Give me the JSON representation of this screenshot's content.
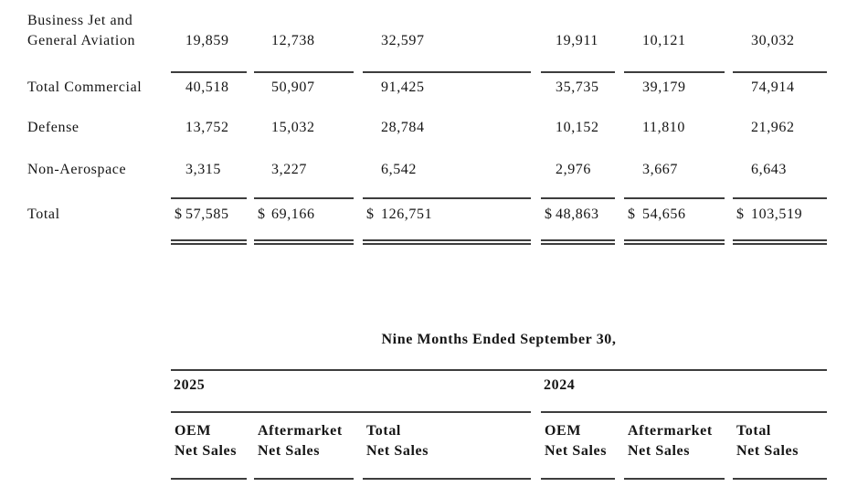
{
  "page": {
    "background_color": "#ffffff",
    "text_color": "#151515",
    "rule_color": "#3d3d3d"
  },
  "sales_table": {
    "currency_symbol": "$",
    "rows": [
      {
        "label": "Business Jet and General Aviation",
        "values": [
          "19,859",
          "12,738",
          "32,597",
          "19,911",
          "10,121",
          "30,032"
        ]
      },
      {
        "label": "Total Commercial",
        "values": [
          "40,518",
          "50,907",
          "91,425",
          "35,735",
          "39,179",
          "74,914"
        ]
      },
      {
        "label": "Defense",
        "values": [
          "13,752",
          "15,032",
          "28,784",
          "10,152",
          "11,810",
          "21,962"
        ]
      },
      {
        "label": "Non-Aerospace",
        "values": [
          "3,315",
          "3,227",
          "6,542",
          "2,976",
          "3,667",
          "6,643"
        ]
      },
      {
        "label": "Total",
        "values": [
          "57,585",
          "69,166",
          "126,751",
          "48,863",
          "54,656",
          "103,519"
        ]
      }
    ]
  },
  "nine_months_table": {
    "title": "Nine Months Ended September 30,",
    "year_groups": [
      {
        "year": "2025"
      },
      {
        "year": "2024"
      }
    ],
    "column_headers": [
      {
        "top": "OEM",
        "bottom": "Net Sales"
      },
      {
        "top": "Aftermarket",
        "bottom": "Net Sales"
      },
      {
        "top": "Total",
        "bottom": "Net Sales"
      },
      {
        "top": "OEM",
        "bottom": "Net Sales"
      },
      {
        "top": "Aftermarket",
        "bottom": "Net Sales"
      },
      {
        "top": "Total",
        "bottom": "Net Sales"
      }
    ]
  }
}
